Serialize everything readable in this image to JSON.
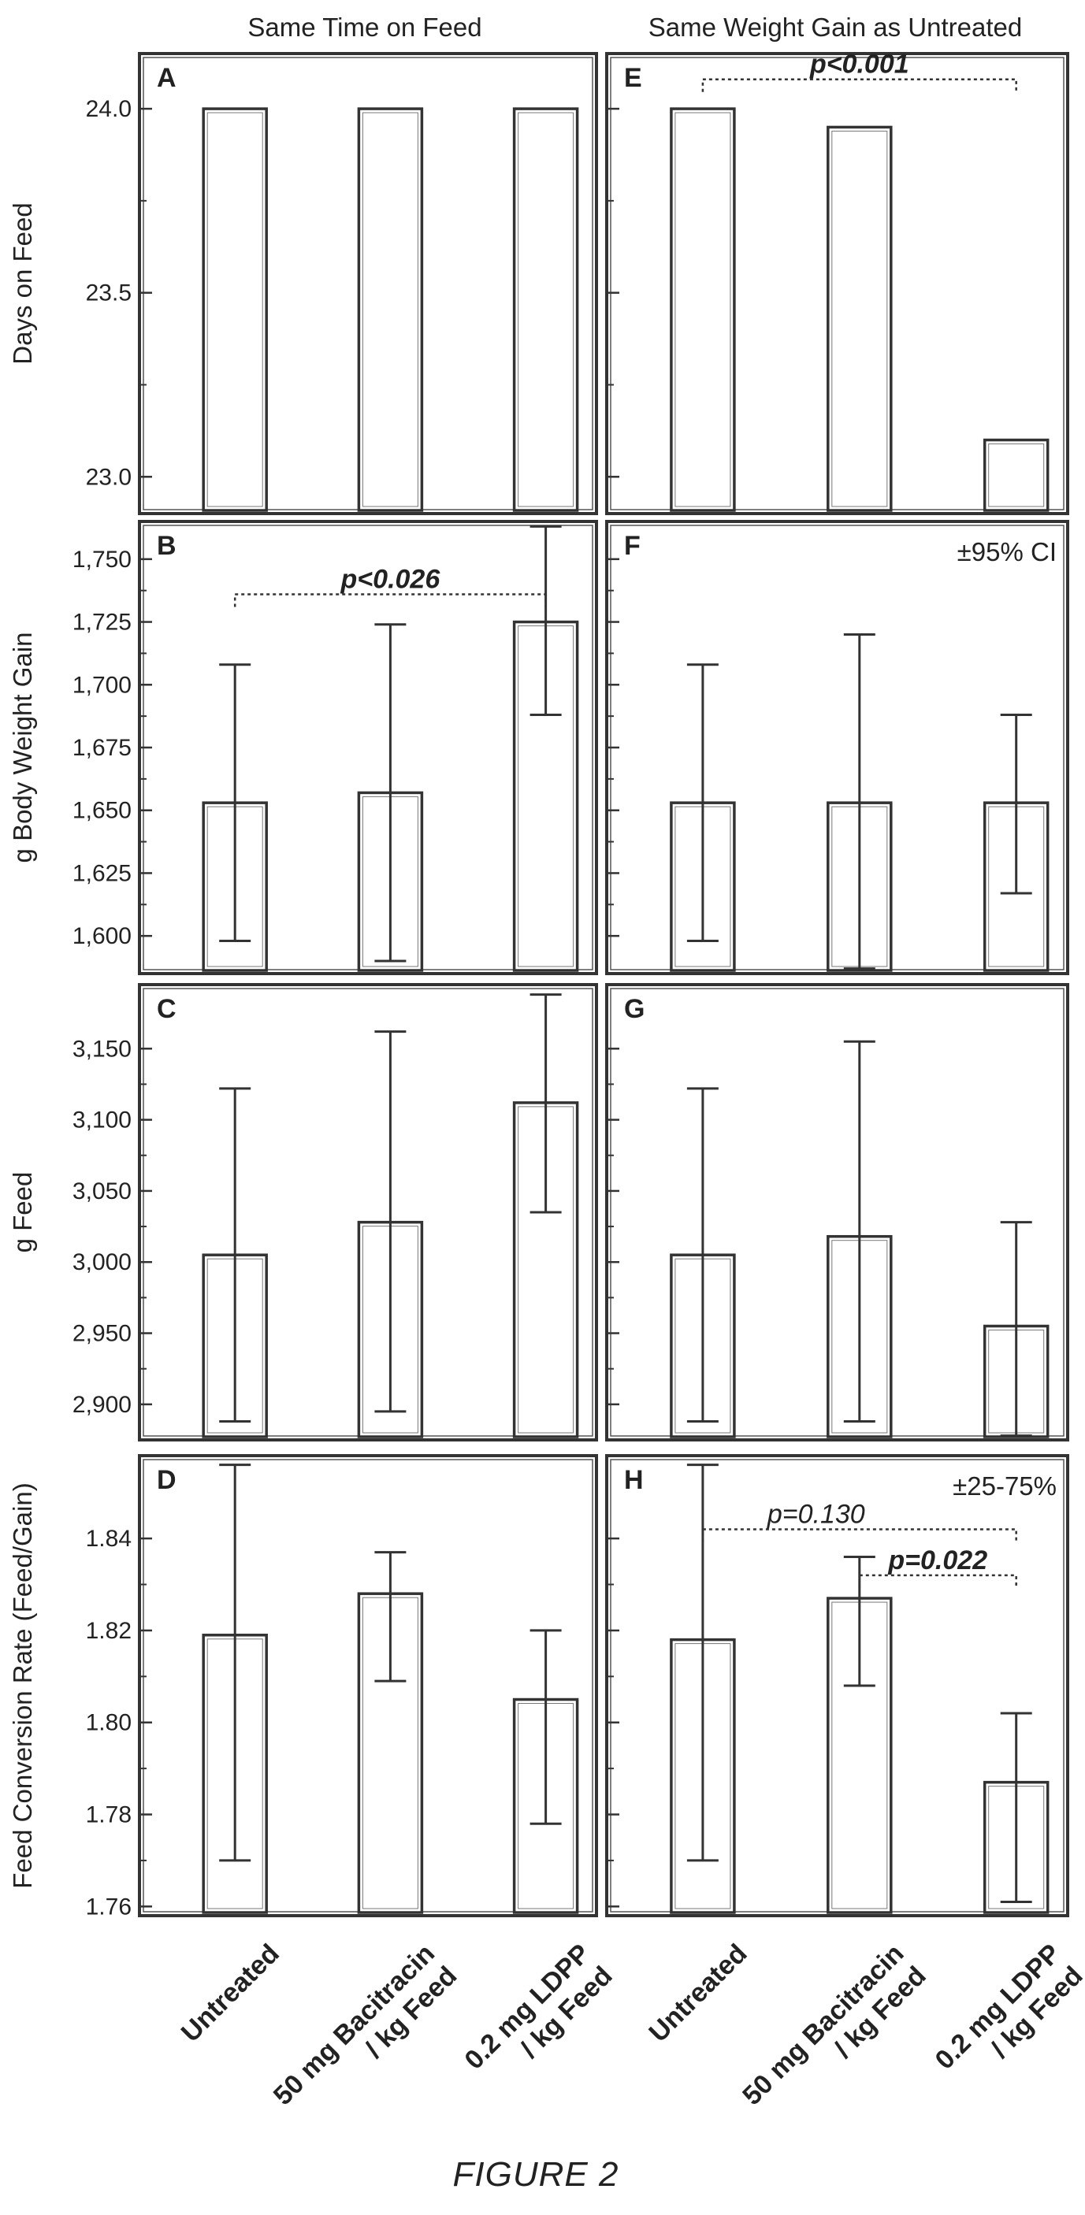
{
  "figure_caption": "FIGURE 2",
  "columns": [
    "Same Time on Feed",
    "Same Weight Gain as Untreated"
  ],
  "categories": [
    "Untreated",
    "50 mg Bacitracin\n/ kg Feed",
    "0.2 mg LDPP\n/ kg Feed"
  ],
  "chart_data": [
    {
      "type": "bar",
      "panel": "A",
      "ylabel": "Days on Feed",
      "ylim": [
        22.9,
        24.15
      ],
      "ticks": [
        23.0,
        23.5,
        24.0
      ],
      "tick_labels": [
        "23.0",
        "23.5",
        "24.0"
      ],
      "categories": [
        "Untreated",
        "50 mg Bacitracin / kg Feed",
        "0.2 mg LDPP / kg Feed"
      ],
      "values": [
        24.0,
        24.0,
        24.0
      ],
      "errors": [
        null,
        null,
        null
      ],
      "annotations": [],
      "note": ""
    },
    {
      "type": "bar",
      "panel": "E",
      "ylabel": "",
      "ylim": [
        22.9,
        24.15
      ],
      "ticks": [
        23.0,
        23.5,
        24.0
      ],
      "tick_labels": [
        "",
        "",
        ""
      ],
      "categories": [
        "Untreated",
        "50 mg Bacitracin / kg Feed",
        "0.2 mg LDPP / kg Feed"
      ],
      "values": [
        24.0,
        23.95,
        23.1
      ],
      "errors": [
        null,
        null,
        null
      ],
      "annotations": [
        {
          "text": "p<0.001",
          "from": 0,
          "to": 2,
          "level": 24.08,
          "bold": true,
          "left_ext": 0,
          "label_dx": 0
        }
      ],
      "note": ""
    },
    {
      "type": "bar",
      "panel": "B",
      "ylabel": "g Body Weight Gain",
      "ylim": [
        1585,
        1765
      ],
      "ticks": [
        1600,
        1625,
        1650,
        1675,
        1700,
        1725,
        1750
      ],
      "tick_labels": [
        "1,600",
        "1,625",
        "1,650",
        "1,675",
        "1,700",
        "1,725",
        "1,750"
      ],
      "categories": [
        "Untreated",
        "50 mg Bacitracin / kg Feed",
        "0.2 mg LDPP / kg Feed"
      ],
      "values": [
        1653,
        1657,
        1725
      ],
      "errors": [
        [
          1598,
          1708
        ],
        [
          1590,
          1724
        ],
        [
          1688,
          1763
        ]
      ],
      "annotations": [
        {
          "text": "p<0.026",
          "from": 0,
          "to": 2,
          "level": 1736,
          "bold": true,
          "left_ext": 0,
          "label_dx": 0
        }
      ],
      "note": ""
    },
    {
      "type": "bar",
      "panel": "F",
      "ylabel": "",
      "ylim": [
        1585,
        1765
      ],
      "ticks": [
        1600,
        1625,
        1650,
        1675,
        1700,
        1725,
        1750
      ],
      "tick_labels": [
        "",
        "",
        "",
        "",
        "",
        "",
        ""
      ],
      "categories": [
        "Untreated",
        "50 mg Bacitracin / kg Feed",
        "0.2 mg LDPP / kg Feed"
      ],
      "values": [
        1653,
        1653,
        1653
      ],
      "errors": [
        [
          1598,
          1708
        ],
        [
          1587,
          1720
        ],
        [
          1617,
          1688
        ]
      ],
      "annotations": [],
      "note": "±95% CI"
    },
    {
      "type": "bar",
      "panel": "C",
      "ylabel": "g Feed",
      "ylim": [
        2875,
        3195
      ],
      "ticks": [
        2900,
        2950,
        3000,
        3050,
        3100,
        3150
      ],
      "tick_labels": [
        "2,900",
        "2,950",
        "3,000",
        "3,050",
        "3,100",
        "3,150"
      ],
      "categories": [
        "Untreated",
        "50 mg Bacitracin / kg Feed",
        "0.2 mg LDPP / kg Feed"
      ],
      "values": [
        3005,
        3028,
        3112
      ],
      "errors": [
        [
          2888,
          3122
        ],
        [
          2895,
          3162
        ],
        [
          3035,
          3188
        ]
      ],
      "annotations": [],
      "note": ""
    },
    {
      "type": "bar",
      "panel": "G",
      "ylabel": "",
      "ylim": [
        2875,
        3195
      ],
      "ticks": [
        2900,
        2950,
        3000,
        3050,
        3100,
        3150
      ],
      "tick_labels": [
        "",
        "",
        "",
        "",
        "",
        ""
      ],
      "categories": [
        "Untreated",
        "50 mg Bacitracin / kg Feed",
        "0.2 mg LDPP / kg Feed"
      ],
      "values": [
        3005,
        3018,
        2955
      ],
      "errors": [
        [
          2888,
          3122
        ],
        [
          2888,
          3155
        ],
        [
          2878,
          3028
        ]
      ],
      "annotations": [],
      "note": ""
    },
    {
      "type": "bar",
      "panel": "D",
      "ylabel": "Feed Conversion Rate (Feed/Gain)",
      "ylim": [
        1.758,
        1.858
      ],
      "ticks": [
        1.76,
        1.78,
        1.8,
        1.82,
        1.84
      ],
      "tick_labels": [
        "1.76",
        "1.78",
        "1.80",
        "1.82",
        "1.84"
      ],
      "categories": [
        "Untreated",
        "50 mg Bacitracin / kg Feed",
        "0.2 mg LDPP / kg Feed"
      ],
      "values": [
        1.819,
        1.828,
        1.805
      ],
      "errors": [
        [
          1.77,
          1.856
        ],
        [
          1.809,
          1.837
        ],
        [
          1.778,
          1.82
        ]
      ],
      "annotations": [],
      "note": ""
    },
    {
      "type": "bar",
      "panel": "H",
      "ylabel": "",
      "ylim": [
        1.758,
        1.858
      ],
      "ticks": [
        1.76,
        1.78,
        1.8,
        1.82,
        1.84
      ],
      "tick_labels": [
        "",
        "",
        "",
        "",
        ""
      ],
      "categories": [
        "Untreated",
        "50 mg Bacitracin / kg Feed",
        "0.2 mg LDPP / kg Feed"
      ],
      "values": [
        1.818,
        1.827,
        1.787
      ],
      "errors": [
        [
          1.77,
          1.856
        ],
        [
          1.808,
          1.836
        ],
        [
          1.761,
          1.802
        ]
      ],
      "annotations": [
        {
          "text": "p=0.130",
          "from": 0,
          "to": 2,
          "level": 1.842,
          "bold": false,
          "left_ext": 0,
          "label_dx": -55
        },
        {
          "text": "p=0.022",
          "from": 1,
          "to": 2,
          "level": 1.832,
          "bold": true,
          "left_ext": 0,
          "label_dx": 0
        }
      ],
      "note": "±25-75%"
    }
  ]
}
